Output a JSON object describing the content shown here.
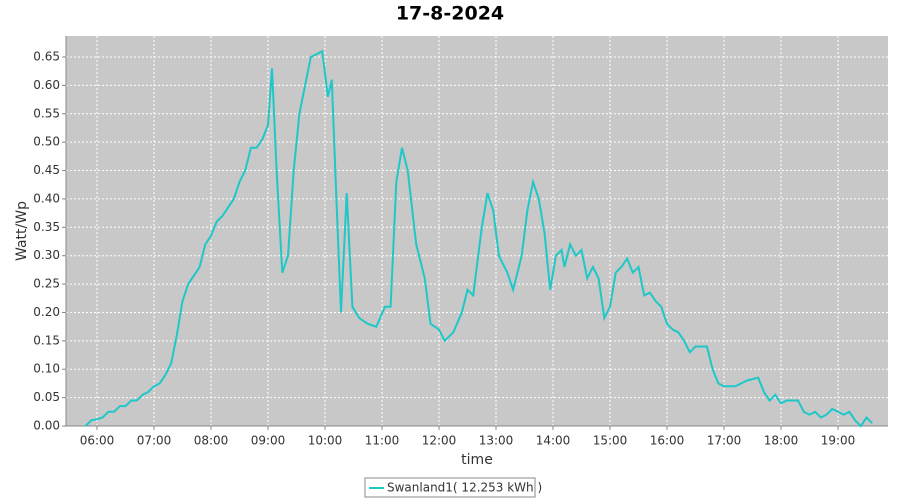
{
  "chart_data": {
    "type": "line",
    "title": "17-8-2024",
    "x_label": "time",
    "y_label": "Watt/Wp",
    "xlim": [
      5.456,
      19.877
    ],
    "xticks": [
      {
        "value": 6,
        "label": "06:00"
      },
      {
        "value": 7,
        "label": "07:00"
      },
      {
        "value": 8,
        "label": "08:00"
      },
      {
        "value": 9,
        "label": "09:00"
      },
      {
        "value": 10,
        "label": "10:00"
      },
      {
        "value": 11,
        "label": "11:00"
      },
      {
        "value": 12,
        "label": "12:00"
      },
      {
        "value": 13,
        "label": "13:00"
      },
      {
        "value": 14,
        "label": "14:00"
      },
      {
        "value": 15,
        "label": "15:00"
      },
      {
        "value": 16,
        "label": "16:00"
      },
      {
        "value": 17,
        "label": "17:00"
      },
      {
        "value": 18,
        "label": "18:00"
      },
      {
        "value": 19,
        "label": "19:00"
      }
    ],
    "ylim": [
      0,
      0.687
    ],
    "yticks": [
      {
        "value": 0,
        "label": "0.00"
      },
      0.05,
      {
        "value": 0.1,
        "label": "0.10"
      },
      0.15,
      {
        "value": 0.2,
        "label": "0.20"
      },
      0.25,
      {
        "value": 0.3,
        "label": "0.30"
      },
      0.35,
      {
        "value": 0.4,
        "label": "0.40"
      },
      0.45,
      {
        "value": 0.5,
        "label": "0.50"
      },
      0.55,
      {
        "value": 0.6,
        "label": "0.60"
      },
      0.65
    ],
    "grid": true,
    "x": [
      5.8,
      5.9,
      6.0,
      6.1,
      6.2,
      6.3,
      6.4,
      6.5,
      6.6,
      6.7,
      6.8,
      6.9,
      7.0,
      7.1,
      7.2,
      7.3,
      7.4,
      7.5,
      7.6,
      7.7,
      7.8,
      7.9,
      8.0,
      8.1,
      8.2,
      8.3,
      8.4,
      8.5,
      8.6,
      8.7,
      8.8,
      8.9,
      9.0,
      9.07,
      9.15,
      9.25,
      9.35,
      9.45,
      9.55,
      9.65,
      9.75,
      9.85,
      9.95,
      10.05,
      10.12,
      10.2,
      10.28,
      10.38,
      10.48,
      10.6,
      10.75,
      10.9,
      11.05,
      11.15,
      11.25,
      11.35,
      11.45,
      11.6,
      11.75,
      11.85,
      12.0,
      12.1,
      12.25,
      12.4,
      12.5,
      12.6,
      12.75,
      12.85,
      12.95,
      13.05,
      13.2,
      13.3,
      13.45,
      13.55,
      13.65,
      13.75,
      13.85,
      13.95,
      14.05,
      14.15,
      14.2,
      14.3,
      14.4,
      14.5,
      14.6,
      14.7,
      14.8,
      14.9,
      15.0,
      15.1,
      15.2,
      15.3,
      15.4,
      15.5,
      15.6,
      15.7,
      15.8,
      15.9,
      16.0,
      16.1,
      16.2,
      16.3,
      16.4,
      16.5,
      16.6,
      16.7,
      16.8,
      16.9,
      17.0,
      17.2,
      17.4,
      17.6,
      17.7,
      17.8,
      17.9,
      18.0,
      18.1,
      18.3,
      18.4,
      18.5,
      18.6,
      18.7,
      18.8,
      18.9,
      19.0,
      19.1,
      19.2,
      19.3,
      19.4,
      19.5,
      19.6
    ],
    "series": [
      {
        "name": "Swanland1( 12.253 kWh )",
        "color": "#1ec8c8",
        "values": [
          0,
          0.01,
          0.012,
          0.015,
          0.025,
          0.025,
          0.035,
          0.035,
          0.045,
          0.045,
          0.055,
          0.06,
          0.07,
          0.075,
          0.09,
          0.11,
          0.16,
          0.22,
          0.25,
          0.265,
          0.28,
          0.32,
          0.335,
          0.36,
          0.37,
          0.385,
          0.4,
          0.43,
          0.45,
          0.49,
          0.49,
          0.505,
          0.53,
          0.63,
          0.45,
          0.27,
          0.3,
          0.45,
          0.55,
          0.6,
          0.65,
          0.655,
          0.66,
          0.58,
          0.61,
          0.4,
          0.2,
          0.41,
          0.21,
          0.19,
          0.18,
          0.175,
          0.21,
          0.21,
          0.43,
          0.49,
          0.45,
          0.32,
          0.26,
          0.18,
          0.17,
          0.15,
          0.165,
          0.2,
          0.24,
          0.23,
          0.35,
          0.41,
          0.38,
          0.3,
          0.27,
          0.24,
          0.3,
          0.38,
          0.43,
          0.4,
          0.34,
          0.24,
          0.3,
          0.31,
          0.28,
          0.32,
          0.3,
          0.31,
          0.26,
          0.28,
          0.26,
          0.19,
          0.21,
          0.27,
          0.28,
          0.295,
          0.27,
          0.28,
          0.23,
          0.235,
          0.22,
          0.21,
          0.18,
          0.17,
          0.165,
          0.15,
          0.13,
          0.14,
          0.14,
          0.14,
          0.1,
          0.075,
          0.07,
          0.07,
          0.08,
          0.085,
          0.06,
          0.045,
          0.055,
          0.04,
          0.045,
          0.045,
          0.025,
          0.02,
          0.025,
          0.015,
          0.02,
          0.03,
          0.025,
          0.02,
          0.025,
          0.01,
          0,
          0.015,
          0.005
        ]
      }
    ]
  }
}
